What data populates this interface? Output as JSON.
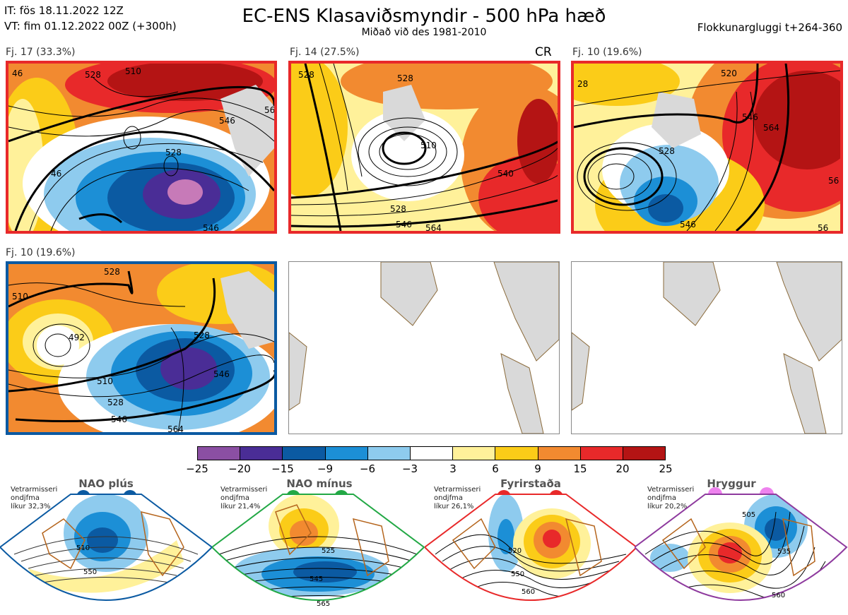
{
  "header": {
    "it_line": "IT: fös 18.11.2022 12Z",
    "vt_line": "VT: fim 01.12.2022 00Z  (+300h)",
    "title": "EC-ENS Klasaviðsmyndir - 500 hPa hæð",
    "subtitle": "Miðað við des 1981-2010",
    "window": "Flokkunargluggi t+264-360"
  },
  "panels": [
    {
      "label": "Fj. 17 (33.3%)",
      "border_color": "#e8292a",
      "contours": [
        "46",
        "528",
        "510",
        "546",
        "56",
        "528",
        "46",
        "546"
      ]
    },
    {
      "label": "Fj. 14 (27.5%)",
      "tag": "CR",
      "border_color": "#e8292a",
      "contours": [
        "528",
        "528",
        "510",
        "540",
        "528",
        "546",
        "564"
      ]
    },
    {
      "label": "Fj. 10 (19.6%)",
      "border_color": "#e8292a",
      "contours": [
        "520",
        "28",
        "546",
        "564",
        "528",
        "56",
        "546",
        "56"
      ]
    },
    {
      "label": "Fj. 10 (19.6%)",
      "border_color": "#0b5aa2",
      "contours": [
        "528",
        "510",
        "492",
        "528",
        "510",
        "528",
        "546",
        "546",
        "564"
      ]
    }
  ],
  "colorbar": {
    "colors": [
      "#8b4fa3",
      "#4a2d96",
      "#0b5aa2",
      "#1c8fd6",
      "#8ecbee",
      "#ffffff",
      "#fff19a",
      "#fbcc18",
      "#f28a30",
      "#e8292a",
      "#b41414"
    ],
    "ticks": [
      "−25",
      "−20",
      "−15",
      "−9",
      "−6",
      "−3",
      "3",
      "6",
      "9",
      "15",
      "20",
      "25"
    ]
  },
  "regimes": [
    {
      "title": "NAO plús",
      "note": [
        "Vetrarmisseri",
        "ondjfma",
        "líkur 32,3%"
      ],
      "color": "#0b5aa2",
      "contours": [
        "510",
        "550"
      ]
    },
    {
      "title": "NAO mínus",
      "note": [
        "Vetrarmisseri",
        "ondjfma",
        "líkur 21,4%"
      ],
      "color": "#22a845",
      "contours": [
        "525",
        "545",
        "565"
      ]
    },
    {
      "title": "Fyrirstaða",
      "note": [
        "Vetrarmisseri",
        "ondjfma",
        "líkur 26,1%"
      ],
      "color": "#e8292a",
      "contours": [
        "520",
        "550",
        "560"
      ]
    },
    {
      "title": "Hryggur",
      "note": [
        "Vetrarmisseri",
        "ondjfma",
        "líkur 20,2%"
      ],
      "color": "#8e3a9e",
      "contours": [
        "505",
        "535",
        "560"
      ]
    }
  ]
}
